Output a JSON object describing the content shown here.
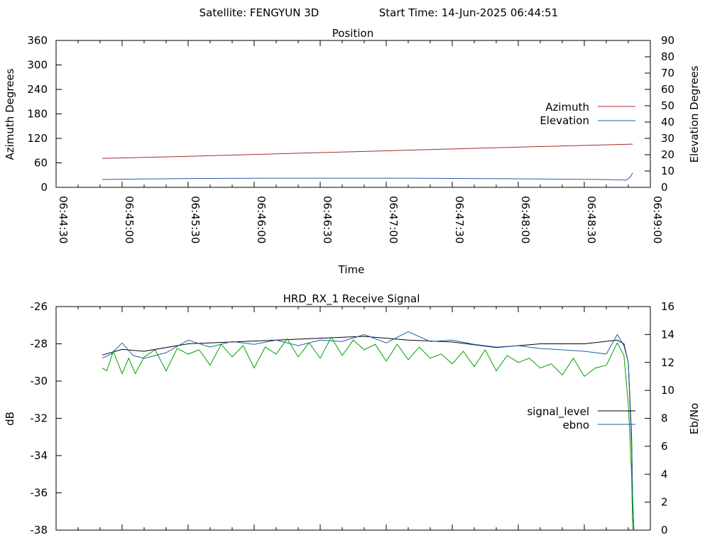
{
  "header": {
    "satellite": "Satellite: FENGYUN 3D",
    "start_time": "Start Time: 14-Jun-2025 06:44:51"
  },
  "chart_data": [
    {
      "type": "line",
      "title": "Position",
      "xlabel": "Time",
      "ylabel": "Azimuth Degrees",
      "y2label": "Elevation Degrees",
      "x_ticks": [
        "06:44:30",
        "06:45:00",
        "06:45:30",
        "06:46:00",
        "06:46:30",
        "06:47:00",
        "06:47:30",
        "06:48:00",
        "06:48:30",
        "06:49:00"
      ],
      "xlim_seconds": [
        0,
        270
      ],
      "ylim": [
        0,
        360
      ],
      "y_ticks": [
        0,
        60,
        120,
        180,
        240,
        300,
        360
      ],
      "y2lim": [
        0,
        90
      ],
      "y2_ticks": [
        0,
        10,
        20,
        30,
        40,
        50,
        60,
        70,
        80,
        90
      ],
      "legend_position": "right",
      "series": [
        {
          "name": "Azimuth",
          "axis": "y",
          "color": "#a52a2a",
          "t": [
            21,
            60,
            100,
            140,
            180,
            220,
            262
          ],
          "values": [
            71,
            76,
            82,
            88,
            94,
            100,
            106
          ]
        },
        {
          "name": "Elevation",
          "axis": "y2",
          "color": "#1f5fa6",
          "t": [
            21,
            30,
            60,
            100,
            160,
            200,
            250,
            259,
            261,
            262
          ],
          "values": [
            4.8,
            5.0,
            5.4,
            5.6,
            5.6,
            5.3,
            4.8,
            4.5,
            6.5,
            9.0
          ]
        }
      ]
    },
    {
      "type": "line",
      "title": "HRD_RX_1 Receive Signal",
      "ylabel": "dB",
      "y2label": "Eb/No",
      "xlim_seconds": [
        0,
        270
      ],
      "ylim": [
        -38,
        -26
      ],
      "y_ticks": [
        -38,
        -36,
        -34,
        -32,
        -30,
        -28,
        -26
      ],
      "y2lim": [
        0,
        16
      ],
      "y2_ticks": [
        0,
        2,
        4,
        6,
        8,
        10,
        12,
        14,
        16
      ],
      "legend_position": "right",
      "series": [
        {
          "name": "signal_level",
          "axis": "y",
          "color": "#000000",
          "t": [
            21,
            30,
            40,
            60,
            80,
            100,
            120,
            140,
            160,
            180,
            200,
            220,
            240,
            255,
            258,
            260,
            261.5,
            262,
            262.5
          ],
          "values": [
            -28.6,
            -28.3,
            -28.4,
            -28.0,
            -27.9,
            -27.8,
            -27.7,
            -27.6,
            -27.8,
            -27.9,
            -28.2,
            -28.0,
            -28.0,
            -27.8,
            -28.0,
            -29.0,
            -33.0,
            -36.5,
            -38.0
          ]
        },
        {
          "name": "ebno",
          "axis": "y2",
          "color": "#1f5fa6",
          "t": [
            21,
            25,
            30,
            35,
            40,
            50,
            60,
            70,
            80,
            90,
            100,
            110,
            120,
            130,
            140,
            150,
            160,
            170,
            180,
            190,
            200,
            210,
            220,
            230,
            240,
            250,
            255,
            258,
            260,
            261.5,
            262,
            262.5
          ],
          "values": [
            12.3,
            12.6,
            13.4,
            12.5,
            12.3,
            12.7,
            13.6,
            13.1,
            13.5,
            13.3,
            13.6,
            13.2,
            13.6,
            13.5,
            14.0,
            13.4,
            14.2,
            13.5,
            13.6,
            13.3,
            13.1,
            13.2,
            13.0,
            12.9,
            12.8,
            12.6,
            14.0,
            13.2,
            12.0,
            6.0,
            2.0,
            0.0
          ]
        },
        {
          "name": "",
          "axis": "y2",
          "color": "#00a000",
          "t": [
            21,
            23,
            26,
            30,
            33,
            36,
            40,
            45,
            50,
            55,
            60,
            65,
            70,
            75,
            80,
            85,
            90,
            95,
            100,
            105,
            110,
            115,
            120,
            125,
            130,
            135,
            140,
            145,
            150,
            155,
            160,
            165,
            170,
            175,
            180,
            185,
            190,
            195,
            200,
            205,
            210,
            215,
            220,
            225,
            230,
            235,
            240,
            245,
            250,
            255,
            258,
            260,
            261.5,
            262
          ],
          "values": [
            11.6,
            11.4,
            12.8,
            11.2,
            12.3,
            11.2,
            12.4,
            12.9,
            11.4,
            13.0,
            12.6,
            12.9,
            11.8,
            13.3,
            12.4,
            13.2,
            11.6,
            13.1,
            12.6,
            13.7,
            12.4,
            13.4,
            12.3,
            13.8,
            12.5,
            13.6,
            12.9,
            13.3,
            12.1,
            13.3,
            12.2,
            13.1,
            12.3,
            12.6,
            11.9,
            12.8,
            11.7,
            12.9,
            11.4,
            12.5,
            12.0,
            12.3,
            11.6,
            11.9,
            11.1,
            12.3,
            11.0,
            11.6,
            11.8,
            13.4,
            12.5,
            9.0,
            4.0,
            0.0
          ]
        }
      ]
    }
  ]
}
